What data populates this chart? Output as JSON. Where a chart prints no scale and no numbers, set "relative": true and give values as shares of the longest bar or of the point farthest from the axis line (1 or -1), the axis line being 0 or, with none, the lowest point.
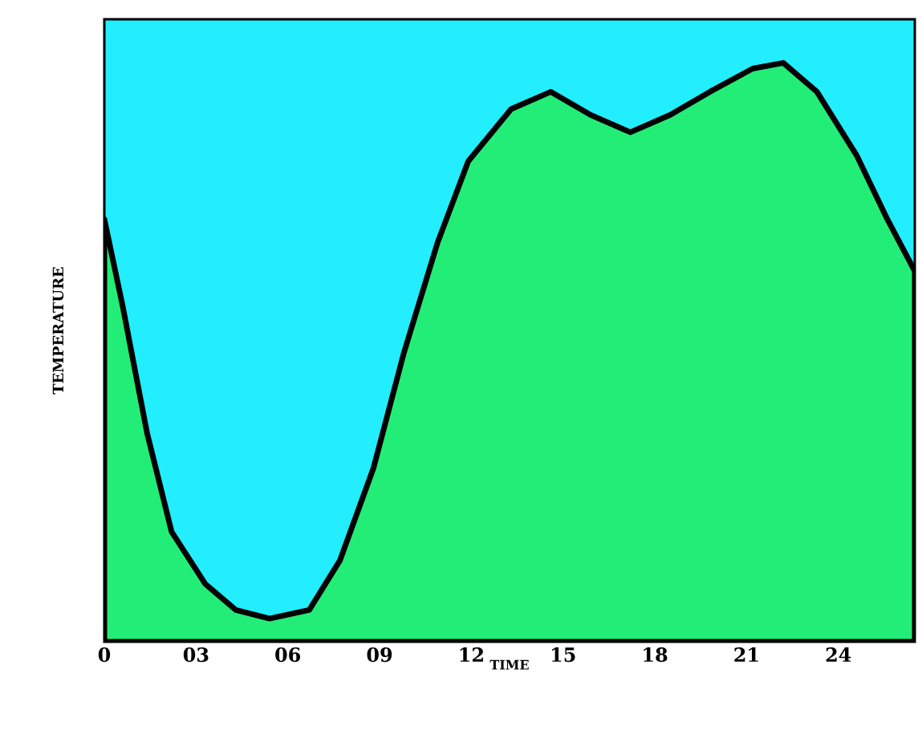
{
  "chart_data": {
    "type": "area",
    "relative": true,
    "xlabel": "TIME",
    "ylabel": "TEMPERATURE",
    "color": "#22ee77",
    "tick_labels": "x",
    "xlim": [
      0,
      26.5
    ],
    "xticks": [
      0,
      {
        "value": 3,
        "label": "03"
      },
      {
        "value": 6,
        "label": "06"
      },
      {
        "value": 9,
        "label": "09"
      },
      12,
      15,
      18,
      21,
      24
    ],
    "x": [
      0,
      0.6,
      1.4,
      2.2,
      3.3,
      4.3,
      5.4,
      6.7,
      7.7,
      8.8,
      9.8,
      10.9,
      11.9,
      13.3,
      14.6,
      15.9,
      17.2,
      18.5,
      19.8,
      21.2,
      22.2,
      23.3,
      24.6,
      25.6,
      26.5
    ],
    "values": [
      0.73,
      0.58,
      0.36,
      0.19,
      0.1,
      0.055,
      0.04,
      0.055,
      0.14,
      0.3,
      0.5,
      0.69,
      0.83,
      0.92,
      0.95,
      0.91,
      0.88,
      0.91,
      0.95,
      0.99,
      1.0,
      0.95,
      0.84,
      0.73,
      0.64
    ]
  }
}
